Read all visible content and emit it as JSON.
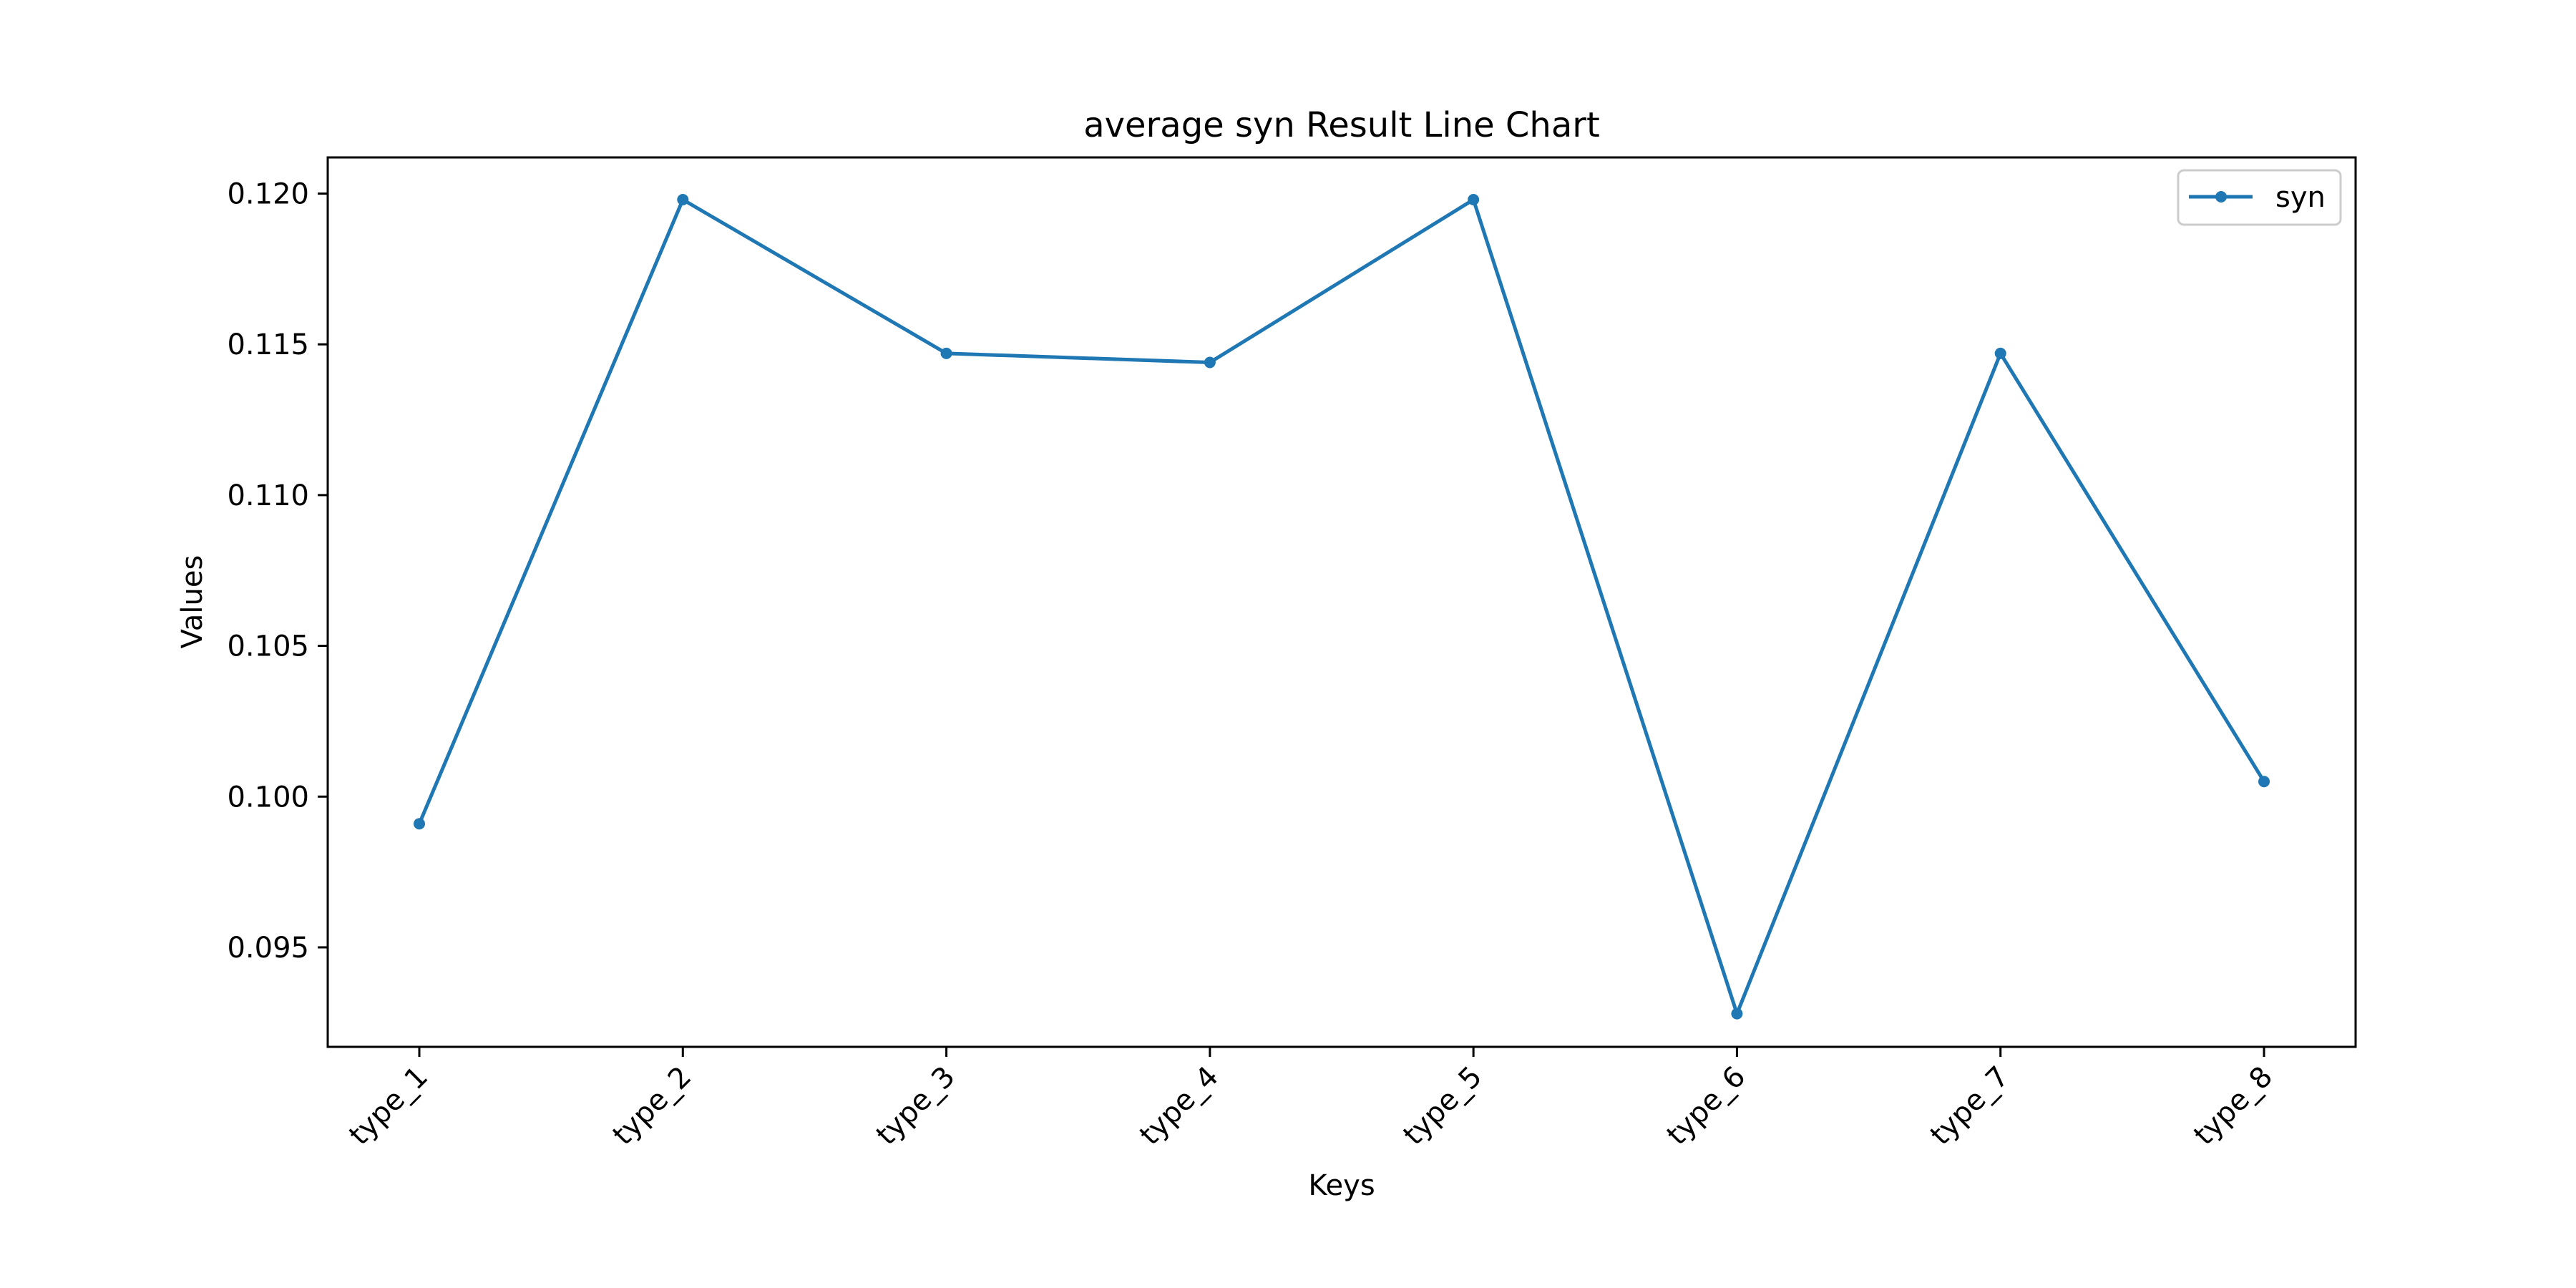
{
  "chart_data": {
    "type": "line",
    "title": "average syn Result Line Chart",
    "xlabel": "Keys",
    "ylabel": "Values",
    "categories": [
      "type_1",
      "type_2",
      "type_3",
      "type_4",
      "type_5",
      "type_6",
      "type_7",
      "type_8"
    ],
    "series": [
      {
        "name": "syn",
        "color": "#1f77b4",
        "marker": "circle",
        "values": [
          0.0991,
          0.1198,
          0.1147,
          0.1144,
          0.1198,
          0.0928,
          0.1147,
          0.1005
        ]
      }
    ],
    "ylim": [
      0.0917,
      0.1212
    ],
    "yticks": [
      0.095,
      0.1,
      0.105,
      0.11,
      0.115,
      0.12
    ],
    "ytick_labels": [
      "0.095",
      "0.100",
      "0.105",
      "0.110",
      "0.115",
      "0.120"
    ],
    "grid": false,
    "legend_position": "top-right"
  }
}
